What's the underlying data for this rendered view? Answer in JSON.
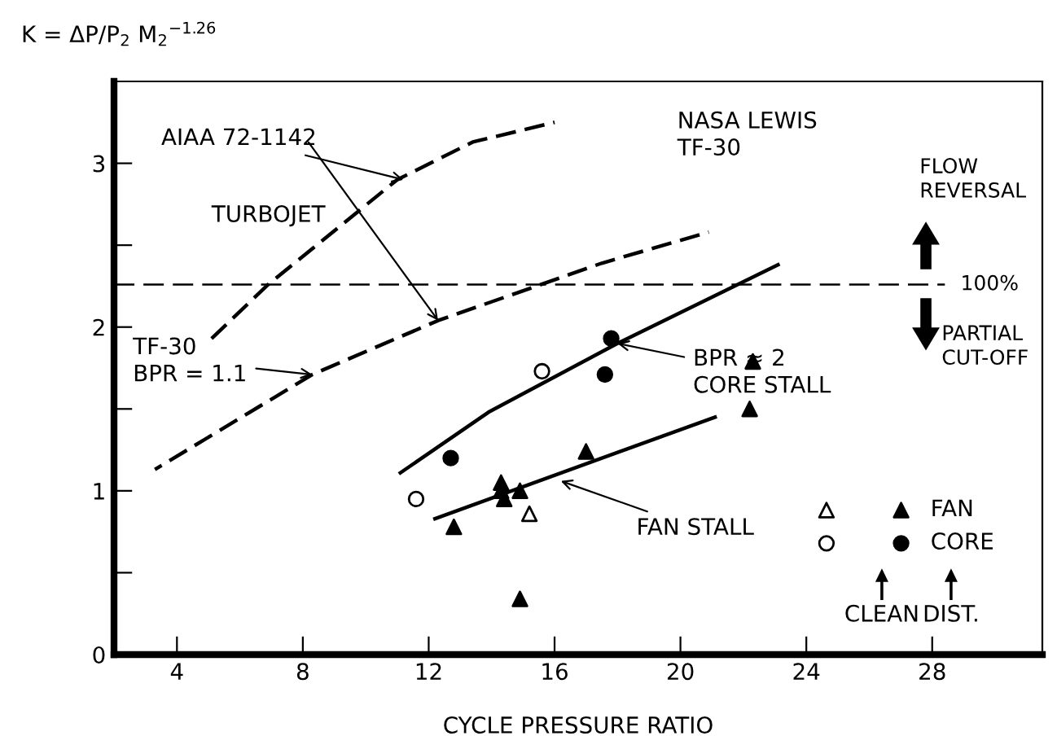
{
  "chart_data": {
    "type": "scatter",
    "ylabel": "K = ΔP/P$_{2}$ M$_{2}$$^{−1.26}$",
    "xlabel": "CYCLE PRESSURE RATIO",
    "xlim": [
      2,
      31.5
    ],
    "xticks": [
      4,
      8,
      12,
      16,
      20,
      24,
      28
    ],
    "ylim": [
      0,
      3.5
    ],
    "yticks": [
      0,
      {
        "value": 0.5,
        "label": null
      },
      1,
      {
        "value": 1.5,
        "label": null
      },
      2,
      {
        "value": 2.5,
        "label": null
      },
      3
    ],
    "grid": false,
    "legend": "bottom right",
    "ref_lines": [
      {
        "axis": "y",
        "value": 2.26,
        "line_style": "dashed",
        "color": "#000000"
      }
    ],
    "series": [
      {
        "type": "line",
        "line_style": "dashed",
        "color": "#000000",
        "x": [
          5.1,
          6.9,
          11.0,
          13.4,
          16.0
        ],
        "values": [
          1.93,
          2.26,
          2.9,
          3.13,
          3.25
        ]
      },
      {
        "type": "line",
        "line_style": "dashed",
        "color": "#000000",
        "x": [
          3.3,
          8.3,
          12.3,
          17.5,
          20.9
        ],
        "values": [
          1.13,
          1.71,
          2.04,
          2.39,
          2.58
        ]
      },
      {
        "type": "line",
        "line_style": "solid",
        "color": "#000000",
        "x": [
          11.1,
          13.9,
          18.0,
          23.1
        ],
        "values": [
          1.11,
          1.48,
          1.9,
          2.38
        ]
      },
      {
        "type": "line",
        "line_style": "solid",
        "color": "#000000",
        "x": [
          12.2,
          21.1
        ],
        "values": [
          0.83,
          1.45
        ]
      },
      {
        "marker": "triangle",
        "color": "#ffffff",
        "x": [
          15.2
        ],
        "values": [
          0.86
        ]
      },
      {
        "marker": "circle",
        "color": "#ffffff",
        "x": [
          11.6,
          15.6
        ],
        "values": [
          0.95,
          1.73
        ]
      },
      {
        "marker": "triangle",
        "name": "FAN",
        "color": "#000000",
        "x": [
          12.8,
          14.3,
          14.3,
          14.4,
          14.9,
          17.0,
          22.2,
          22.3,
          14.9
        ],
        "values": [
          0.78,
          1.05,
          1.0,
          0.95,
          1.0,
          1.24,
          1.5,
          1.79,
          0.34
        ]
      },
      {
        "marker": "circle",
        "name": "CORE",
        "color": "#000000",
        "x": [
          12.7,
          17.8,
          17.6
        ],
        "values": [
          1.2,
          1.93,
          1.71
        ]
      }
    ],
    "annotations": [
      {
        "text": "AIAA 72-1142",
        "x": 11.2,
        "y": 2.9
      },
      "TURBOJET",
      {
        "text": "TF-30\nBPR = 1.1",
        "x": 8.3,
        "y": 1.71
      },
      "NASA LEWIS\nTF-30",
      {
        "text": "BPR ≈ 2\nCORE STALL",
        "x": 18.0,
        "y": 1.9
      },
      {
        "text": "FAN STALL",
        "x": 16.2,
        "y": 1.06
      },
      "FLOW\nREVERSAL",
      "PARTIAL\nCUT-OFF",
      "CLEAN",
      "DIST.",
      "100%"
    ]
  }
}
